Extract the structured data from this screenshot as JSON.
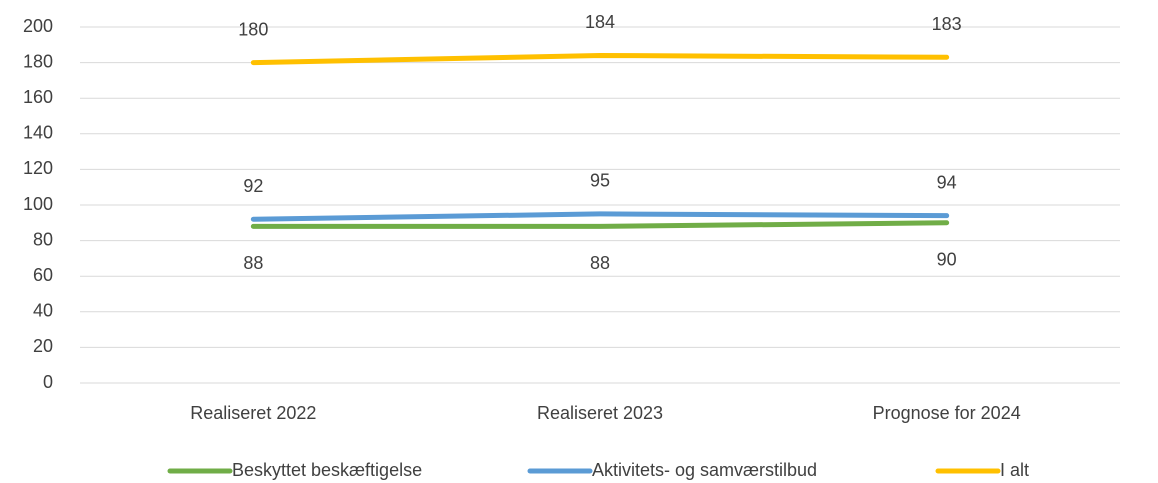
{
  "chart_data": {
    "type": "line",
    "categories": [
      "Realiseret 2022",
      "Realiseret 2023",
      "Prognose for 2024"
    ],
    "series": [
      {
        "name": "Beskyttet beskæftigelse",
        "color": "#70ad47",
        "values": [
          88,
          88,
          90
        ]
      },
      {
        "name": "Aktivitets- og samværstilbud",
        "color": "#5b9bd5",
        "values": [
          92,
          95,
          94
        ]
      },
      {
        "name": "I alt",
        "color": "#ffc000",
        "values": [
          180,
          184,
          183
        ]
      }
    ],
    "ylim": [
      0,
      200
    ],
    "yticks": [
      0,
      20,
      40,
      60,
      80,
      100,
      120,
      140,
      160,
      180,
      200
    ],
    "grid": true,
    "legend": "bottom"
  }
}
